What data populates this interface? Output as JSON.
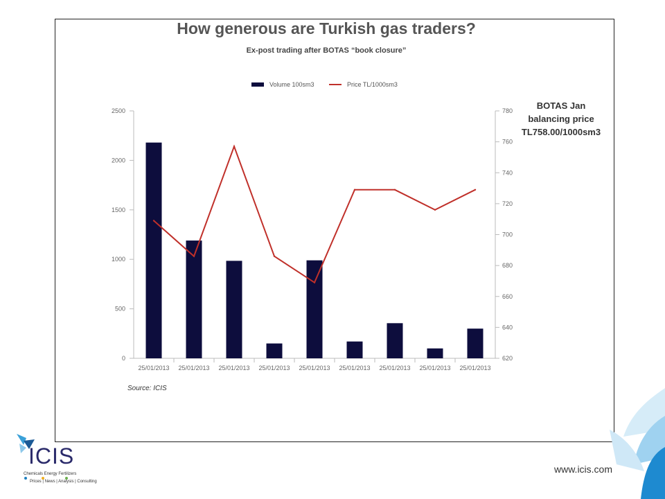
{
  "slide": {
    "annotation_lines": [
      "BOTAS Jan",
      "balancing price",
      "TL758.00/1000sm3"
    ],
    "source": "Source: ICIS",
    "url": "www.icis.com",
    "logo": {
      "name": "ICIS",
      "tagline_1": "Chemicals  Energy  Fertilizers",
      "tagline_2": "Prices | News | Analysis | Consulting"
    }
  },
  "chart_data": {
    "type": "bar",
    "title": "How generous are Turkish gas traders?",
    "subtitle": "Ex-post trading after BOTAS “book closure”",
    "categories": [
      "25/01/2013",
      "25/01/2013",
      "25/01/2013",
      "25/01/2013",
      "25/01/2013",
      "25/01/2013",
      "25/01/2013",
      "25/01/2013",
      "25/01/2013"
    ],
    "series": [
      {
        "name": "Volume 100sm3",
        "type": "bar",
        "axis": "left",
        "color": "#0d0d3d",
        "values": [
          2180,
          1190,
          985,
          150,
          990,
          170,
          355,
          100,
          300
        ]
      },
      {
        "name": "Price TL/1000sm3",
        "type": "line",
        "axis": "right",
        "color": "#c0302a",
        "values": [
          709,
          686,
          757,
          686,
          669,
          729,
          729,
          716,
          729
        ]
      }
    ],
    "y_left": {
      "min": 0,
      "max": 2500,
      "ticks": [
        0,
        500,
        1000,
        1500,
        2000,
        2500
      ]
    },
    "y_right": {
      "min": 620,
      "max": 780,
      "ticks": [
        620,
        640,
        660,
        680,
        700,
        720,
        740,
        760,
        780
      ]
    },
    "legend_position": "top-center",
    "grid": false
  }
}
